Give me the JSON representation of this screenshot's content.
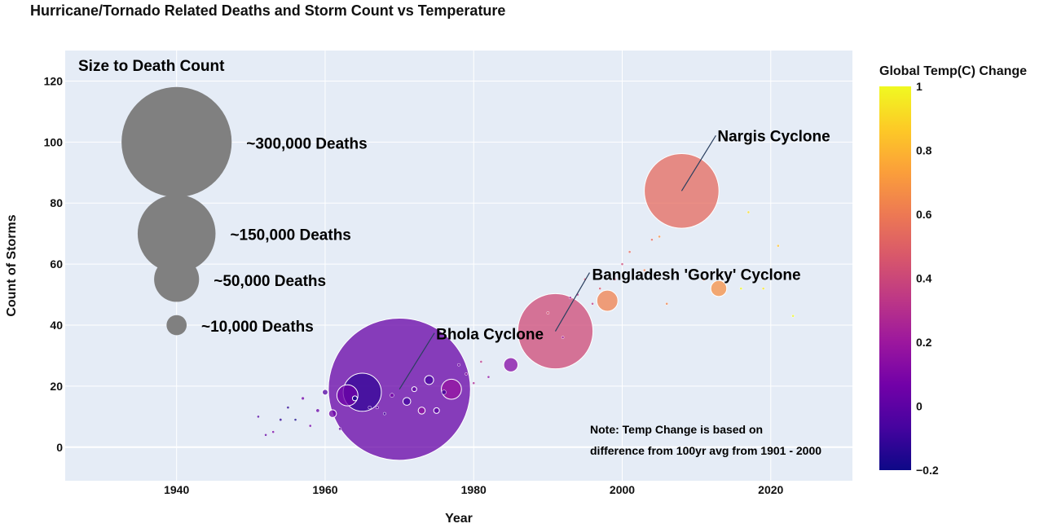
{
  "chart_data": {
    "type": "scatter",
    "title": "Hurricane/Tornado Related Deaths and Storm Count vs Temperature",
    "xlabel": "Year",
    "ylabel": "Count of Storms",
    "xlim": [
      1925,
      2031
    ],
    "ylim": [
      -11,
      130
    ],
    "x_ticks": [
      1940,
      1960,
      1980,
      2000,
      2020
    ],
    "y_ticks": [
      0,
      20,
      40,
      60,
      80,
      100,
      120
    ],
    "grid": true,
    "background": "#E5ECF6",
    "colorbar": {
      "title": "Global Temp(C) Change",
      "range": [
        -0.2,
        1.0
      ],
      "ticks": [
        "1",
        "0.8",
        "0.6",
        "0.4",
        "0.2",
        "0",
        "−0.2"
      ],
      "tick_values": [
        1,
        0.8,
        0.6,
        0.4,
        0.2,
        0,
        -0.2
      ],
      "colorscale": [
        "#0d0887",
        "#46039f",
        "#7201a8",
        "#9c179e",
        "#bd3786",
        "#d8576b",
        "#ed7953",
        "#fb9f3a",
        "#fdca26",
        "#f0f921"
      ]
    },
    "size_legend": {
      "title": "Size to Death Count",
      "color": "#808080",
      "items": [
        {
          "x": 1940,
          "y": 100,
          "deaths": 300000,
          "label": "~300,000 Deaths"
        },
        {
          "x": 1940,
          "y": 70,
          "deaths": 150000,
          "label": "~150,000 Deaths"
        },
        {
          "x": 1940,
          "y": 55,
          "deaths": 50000,
          "label": "~50,000 Deaths"
        },
        {
          "x": 1940,
          "y": 40,
          "deaths": 10000,
          "label": "~10,000 Deaths"
        }
      ]
    },
    "points": [
      {
        "x": 1951,
        "y": 10,
        "deaths": 150,
        "temp": -0.04
      },
      {
        "x": 1952,
        "y": 4,
        "deaths": 100,
        "temp": 0.01
      },
      {
        "x": 1953,
        "y": 5,
        "deaths": 120,
        "temp": 0.08
      },
      {
        "x": 1954,
        "y": 9,
        "deaths": 200,
        "temp": -0.13
      },
      {
        "x": 1955,
        "y": 13,
        "deaths": 180,
        "temp": -0.14
      },
      {
        "x": 1956,
        "y": 9,
        "deaths": 150,
        "temp": -0.19
      },
      {
        "x": 1957,
        "y": 16,
        "deaths": 250,
        "temp": 0.05
      },
      {
        "x": 1958,
        "y": 7,
        "deaths": 180,
        "temp": 0.06
      },
      {
        "x": 1959,
        "y": 12,
        "deaths": 300,
        "temp": 0.03
      },
      {
        "x": 1960,
        "y": 18,
        "deaths": 800,
        "temp": -0.03
      },
      {
        "x": 1961,
        "y": 11,
        "deaths": 1500,
        "temp": 0.05
      },
      {
        "x": 1962,
        "y": 6,
        "deaths": 200,
        "temp": 0.03
      },
      {
        "x": 1963,
        "y": 17,
        "deaths": 11000,
        "temp": 0.05
      },
      {
        "x": 1964,
        "y": 16,
        "deaths": 600,
        "temp": -0.2
      },
      {
        "x": 1965,
        "y": 18,
        "deaths": 36000,
        "temp": -0.11
      },
      {
        "x": 1966,
        "y": 13,
        "deaths": 250,
        "temp": -0.06
      },
      {
        "x": 1967,
        "y": 13,
        "deaths": 200,
        "temp": -0.02
      },
      {
        "x": 1968,
        "y": 11,
        "deaths": 180,
        "temp": -0.08
      },
      {
        "x": 1969,
        "y": 17,
        "deaths": 400,
        "temp": 0.08
      },
      {
        "x": 1970,
        "y": 19,
        "deaths": 500000,
        "temp": 0.03
      },
      {
        "x": 1971,
        "y": 15,
        "deaths": 1500,
        "temp": -0.08
      },
      {
        "x": 1972,
        "y": 19,
        "deaths": 600,
        "temp": 0.01
      },
      {
        "x": 1973,
        "y": 12,
        "deaths": 1200,
        "temp": 0.16
      },
      {
        "x": 1974,
        "y": 22,
        "deaths": 2000,
        "temp": -0.07
      },
      {
        "x": 1975,
        "y": 12,
        "deaths": 800,
        "temp": -0.01
      },
      {
        "x": 1976,
        "y": 18,
        "deaths": 500,
        "temp": -0.1
      },
      {
        "x": 1977,
        "y": 19,
        "deaths": 10000,
        "temp": 0.18
      },
      {
        "x": 1978,
        "y": 27,
        "deaths": 150,
        "temp": 0.07
      },
      {
        "x": 1979,
        "y": 24,
        "deaths": 150,
        "temp": 0.16
      },
      {
        "x": 1980,
        "y": 21,
        "deaths": 150,
        "temp": 0.26
      },
      {
        "x": 1981,
        "y": 28,
        "deaths": 150,
        "temp": 0.32
      },
      {
        "x": 1982,
        "y": 23,
        "deaths": 120,
        "temp": 0.14
      },
      {
        "x": 1985,
        "y": 27,
        "deaths": 5000,
        "temp": 0.12
      },
      {
        "x": 1990,
        "y": 44,
        "deaths": 150,
        "temp": 0.45
      },
      {
        "x": 1991,
        "y": 38,
        "deaths": 140000,
        "temp": 0.41
      },
      {
        "x": 1992,
        "y": 36,
        "deaths": 150,
        "temp": 0.22
      },
      {
        "x": 1993,
        "y": 49,
        "deaths": 150,
        "temp": 0.24
      },
      {
        "x": 1994,
        "y": 50,
        "deaths": 150,
        "temp": 0.31
      },
      {
        "x": 1995,
        "y": 55,
        "deaths": 150,
        "temp": 0.45
      },
      {
        "x": 1996,
        "y": 47,
        "deaths": 150,
        "temp": 0.35
      },
      {
        "x": 1997,
        "y": 52,
        "deaths": 150,
        "temp": 0.46
      },
      {
        "x": 1998,
        "y": 48,
        "deaths": 11000,
        "temp": 0.63
      },
      {
        "x": 1999,
        "y": 55,
        "deaths": 150,
        "temp": 0.4
      },
      {
        "x": 2000,
        "y": 60,
        "deaths": 150,
        "temp": 0.4
      },
      {
        "x": 2001,
        "y": 64,
        "deaths": 150,
        "temp": 0.54
      },
      {
        "x": 2003,
        "y": 58,
        "deaths": 150,
        "temp": 0.62
      },
      {
        "x": 2004,
        "y": 68,
        "deaths": 150,
        "temp": 0.54
      },
      {
        "x": 2005,
        "y": 69,
        "deaths": 150,
        "temp": 0.68
      },
      {
        "x": 2006,
        "y": 47,
        "deaths": 150,
        "temp": 0.64
      },
      {
        "x": 2008,
        "y": 84,
        "deaths": 138000,
        "temp": 0.54
      },
      {
        "x": 2011,
        "y": 55,
        "deaths": 150,
        "temp": 0.61
      },
      {
        "x": 2013,
        "y": 52,
        "deaths": 6300,
        "temp": 0.68
      },
      {
        "x": 2016,
        "y": 52,
        "deaths": 150,
        "temp": 1.0
      },
      {
        "x": 2017,
        "y": 77,
        "deaths": 150,
        "temp": 0.92
      },
      {
        "x": 2019,
        "y": 52,
        "deaths": 150,
        "temp": 0.95
      },
      {
        "x": 2021,
        "y": 66,
        "deaths": 150,
        "temp": 0.84
      },
      {
        "x": 2023,
        "y": 43,
        "deaths": 150,
        "temp": 1.0
      }
    ],
    "annotations": [
      {
        "text": "Nargis Cyclone",
        "x": 2008,
        "y": 84
      },
      {
        "text": "Bangladesh 'Gorky' Cyclone",
        "x": 1991,
        "y": 38
      },
      {
        "text": "Bhola Cyclone",
        "x": 1970,
        "y": 19
      }
    ],
    "note": [
      "Note: Temp Change is based on",
      "difference from 100yr avg from 1901 - 2000"
    ]
  }
}
